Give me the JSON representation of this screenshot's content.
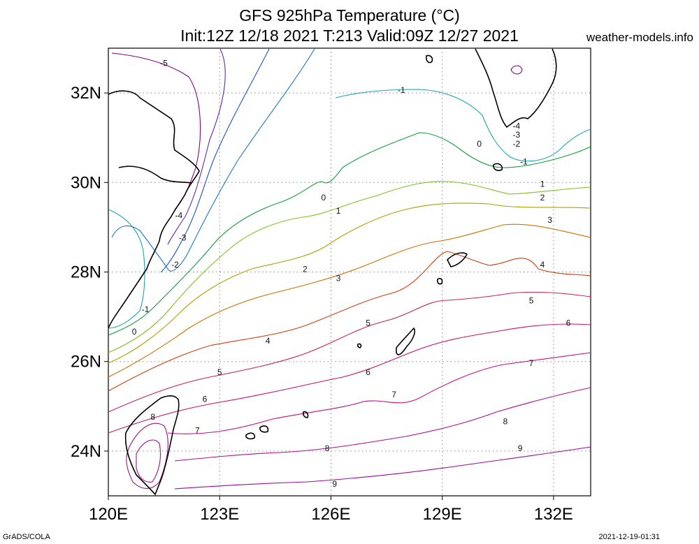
{
  "header": {
    "title": "GFS 925hPa Temperature (°C)",
    "subtitle": "Init:12Z 12/18 2021 T:213 Valid:09Z 12/27 2021",
    "site": "weather-models.info"
  },
  "footer": {
    "left": "GrADS/COLA",
    "right": "2021-12-19-01:31"
  },
  "map": {
    "lon_range": [
      120,
      133
    ],
    "lat_range": [
      23,
      33
    ],
    "x_ticks": [
      "120E",
      "123E",
      "126E",
      "129E",
      "132E"
    ],
    "y_ticks": [
      "24N",
      "26N",
      "28N",
      "30N",
      "32N"
    ],
    "grid": true
  },
  "contour_labels": [
    {
      "text": "-5",
      "lon": 121.5,
      "lat": 32.6,
      "color": "#8b008b"
    },
    {
      "text": "-4",
      "lon": 121.9,
      "lat": 29.2,
      "color": "#5a2db5"
    },
    {
      "text": "-3",
      "lon": 122.0,
      "lat": 28.7,
      "color": "#2050d0"
    },
    {
      "text": "-2",
      "lon": 121.8,
      "lat": 28.1,
      "color": "#1a78c8"
    },
    {
      "text": "-1",
      "lon": 121.0,
      "lat": 27.1,
      "color": "#19a5b0"
    },
    {
      "text": "0",
      "lon": 120.7,
      "lat": 26.6,
      "color": "#15a040"
    },
    {
      "text": "-1",
      "lon": 127.9,
      "lat": 32.0,
      "color": "#19a5b0"
    },
    {
      "text": "0",
      "lon": 125.8,
      "lat": 29.6,
      "color": "#15a040"
    },
    {
      "text": "1",
      "lon": 126.2,
      "lat": 29.3,
      "color": "#80c020"
    },
    {
      "text": "2",
      "lon": 125.3,
      "lat": 28.0,
      "color": "#b0a000"
    },
    {
      "text": "3",
      "lon": 126.2,
      "lat": 27.8,
      "color": "#d07000"
    },
    {
      "text": "4",
      "lon": 124.3,
      "lat": 26.4,
      "color": "#d04010"
    },
    {
      "text": "5",
      "lon": 123.0,
      "lat": 25.7,
      "color": "#cc2050"
    },
    {
      "text": "6",
      "lon": 122.6,
      "lat": 25.1,
      "color": "#c81070"
    },
    {
      "text": "7",
      "lon": 122.4,
      "lat": 24.4,
      "color": "#c0108a"
    },
    {
      "text": "8",
      "lon": 121.2,
      "lat": 24.7,
      "color": "#b01090"
    },
    {
      "text": "5",
      "lon": 127.0,
      "lat": 26.8,
      "color": "#cc2050"
    },
    {
      "text": "6",
      "lon": 127.0,
      "lat": 25.7,
      "color": "#c81070"
    },
    {
      "text": "7",
      "lon": 127.7,
      "lat": 25.2,
      "color": "#c0108a"
    },
    {
      "text": "8",
      "lon": 125.9,
      "lat": 24.0,
      "color": "#b01090"
    },
    {
      "text": "9",
      "lon": 126.1,
      "lat": 23.2,
      "color": "#9a0ca0"
    },
    {
      "text": "0",
      "lon": 130.0,
      "lat": 30.8,
      "color": "#15a040"
    },
    {
      "text": "-1",
      "lon": 131.2,
      "lat": 30.4,
      "color": "#19a5b0"
    },
    {
      "text": "-2",
      "lon": 131.0,
      "lat": 30.8,
      "color": "#1a78c8"
    },
    {
      "text": "-3",
      "lon": 131.0,
      "lat": 31.0,
      "color": "#2050d0"
    },
    {
      "text": "-4",
      "lon": 131.0,
      "lat": 31.2,
      "color": "#5a2db5"
    },
    {
      "text": "1",
      "lon": 131.7,
      "lat": 29.9,
      "color": "#80c020"
    },
    {
      "text": "2",
      "lon": 131.7,
      "lat": 29.6,
      "color": "#b0a000"
    },
    {
      "text": "3",
      "lon": 131.9,
      "lat": 29.1,
      "color": "#d07000"
    },
    {
      "text": "4",
      "lon": 131.7,
      "lat": 28.1,
      "color": "#d04010"
    },
    {
      "text": "5",
      "lon": 131.4,
      "lat": 27.3,
      "color": "#cc2050"
    },
    {
      "text": "6",
      "lon": 132.4,
      "lat": 26.8,
      "color": "#c81070"
    },
    {
      "text": "7",
      "lon": 131.4,
      "lat": 25.9,
      "color": "#c0108a"
    },
    {
      "text": "8",
      "lon": 130.7,
      "lat": 24.6,
      "color": "#b01090"
    },
    {
      "text": "9",
      "lon": 131.1,
      "lat": 24.0,
      "color": "#9a0ca0"
    }
  ]
}
